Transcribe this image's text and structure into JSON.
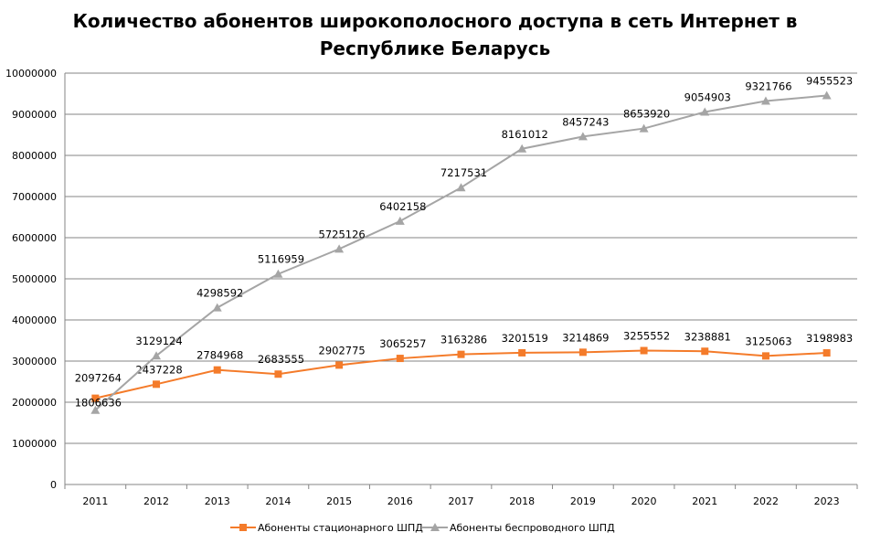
{
  "chart_data": {
    "type": "line",
    "title": "Количество абонентов широкополосного доступа в сеть Интернет в Республике Беларусь",
    "title_lines": [
      "Количество абонентов широкополосного доступа в сеть Интернет в",
      "Республике Беларусь"
    ],
    "categories": [
      "2011",
      "2012",
      "2013",
      "2014",
      "2015",
      "2016",
      "2017",
      "2018",
      "2019",
      "2020",
      "2021",
      "2022",
      "2023"
    ],
    "ylim": [
      0,
      10000000
    ],
    "yticks": [
      0,
      1000000,
      2000000,
      3000000,
      4000000,
      5000000,
      6000000,
      7000000,
      8000000,
      9000000,
      10000000
    ],
    "grid": true,
    "legend": "bottom",
    "series": [
      {
        "name": "Абоненты  стационарного ШПД",
        "color": "#F47B2A",
        "marker": "square",
        "values": [
          2097264,
          2437228,
          2784968,
          2683555,
          2902775,
          3065257,
          3163286,
          3201519,
          3214869,
          3255552,
          3238881,
          3125063,
          3198983
        ]
      },
      {
        "name": "Абоненты  беспроводного  ШПД",
        "color": "#A5A5A5",
        "marker": "triangle",
        "values": [
          1806636,
          3129124,
          4298592,
          5116959,
          5725126,
          6402158,
          7217531,
          8161012,
          8457243,
          8653920,
          9054903,
          9321766,
          9455523
        ]
      }
    ]
  }
}
